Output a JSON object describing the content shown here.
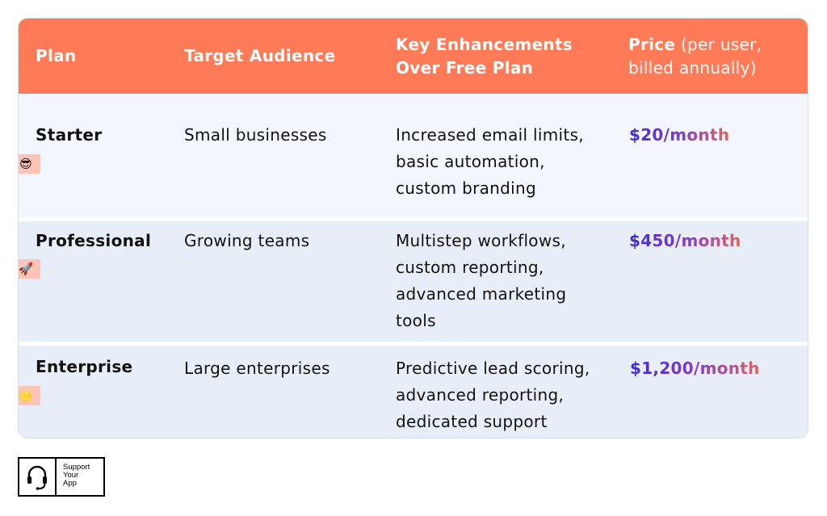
{
  "table": {
    "headers": {
      "plan": "Plan",
      "audience": "Target Audience",
      "enhancements_line1": "Key Enhancements",
      "enhancements_line2": "Over Free Plan",
      "price_bold": "Price",
      "price_light_1": " (per user,",
      "price_line2": "billed annually)"
    },
    "rows": [
      {
        "plan": "Starter",
        "emoji": "😎",
        "emoji_name": "sunglasses-emoji-icon",
        "audience": "Small businesses",
        "enhancements": [
          "Increased email limits,",
          "basic automation,",
          "custom branding"
        ],
        "price": "$20/month"
      },
      {
        "plan": "Professional",
        "emoji": "🚀",
        "emoji_name": "rocket-emoji-icon",
        "audience": "Growing teams",
        "enhancements": [
          "Multistep workflows,",
          "custom reporting,",
          "advanced marketing",
          "tools"
        ],
        "price": "$450/month"
      },
      {
        "plan": "Enterprise",
        "emoji": "🌟",
        "emoji_name": "star-emoji-icon",
        "audience": "Large enterprises",
        "enhancements": [
          "Predictive lead scoring,",
          "advanced reporting,",
          "dedicated support"
        ],
        "price": "$1,200/month"
      }
    ]
  },
  "logo": {
    "icon": "headset-icon",
    "line1": "Support",
    "line2": "Your",
    "line3": "App"
  },
  "colors": {
    "header_bg": "#ff7a57",
    "row_light": "#f3f6fc",
    "row_blue": "#e8eef8",
    "price_gradient_start": "#3f2ad6",
    "price_gradient_end": "#e0665b",
    "emoji_tag_bg": "#ffc4b5"
  }
}
